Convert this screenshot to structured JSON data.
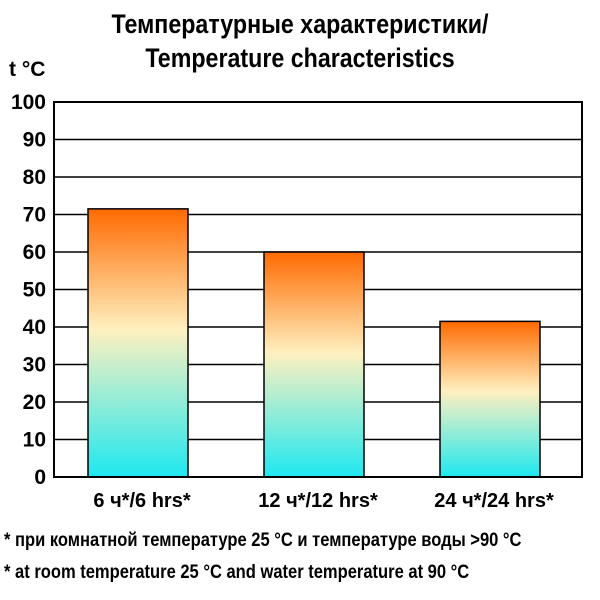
{
  "chart_data": {
    "type": "bar",
    "title_line1": "Температурные характеристики/",
    "title_line2": "Temperature characteristics",
    "ylabel": "t °C",
    "xlabel": "",
    "categories": [
      "6 ч*/6 hrs*",
      "12 ч*/12 hrs*",
      "24 ч*/24 hrs*"
    ],
    "values": [
      71.5,
      60,
      41.5
    ],
    "ylim": [
      0,
      100
    ],
    "yticks": [
      "0",
      "10",
      "20",
      "30",
      "40",
      "50",
      "60",
      "70",
      "80",
      "90",
      "100"
    ],
    "grid": true,
    "bar_gradient": {
      "top": "#ff6a00",
      "middle": "#fff0c0",
      "bottom": "#1ee8f0"
    }
  },
  "notes": {
    "line1": "* при комнатной температуре 25 °C и температуре воды >90 °C",
    "line2": "* at room temperature 25 °C and water temperature at 90 °C"
  }
}
